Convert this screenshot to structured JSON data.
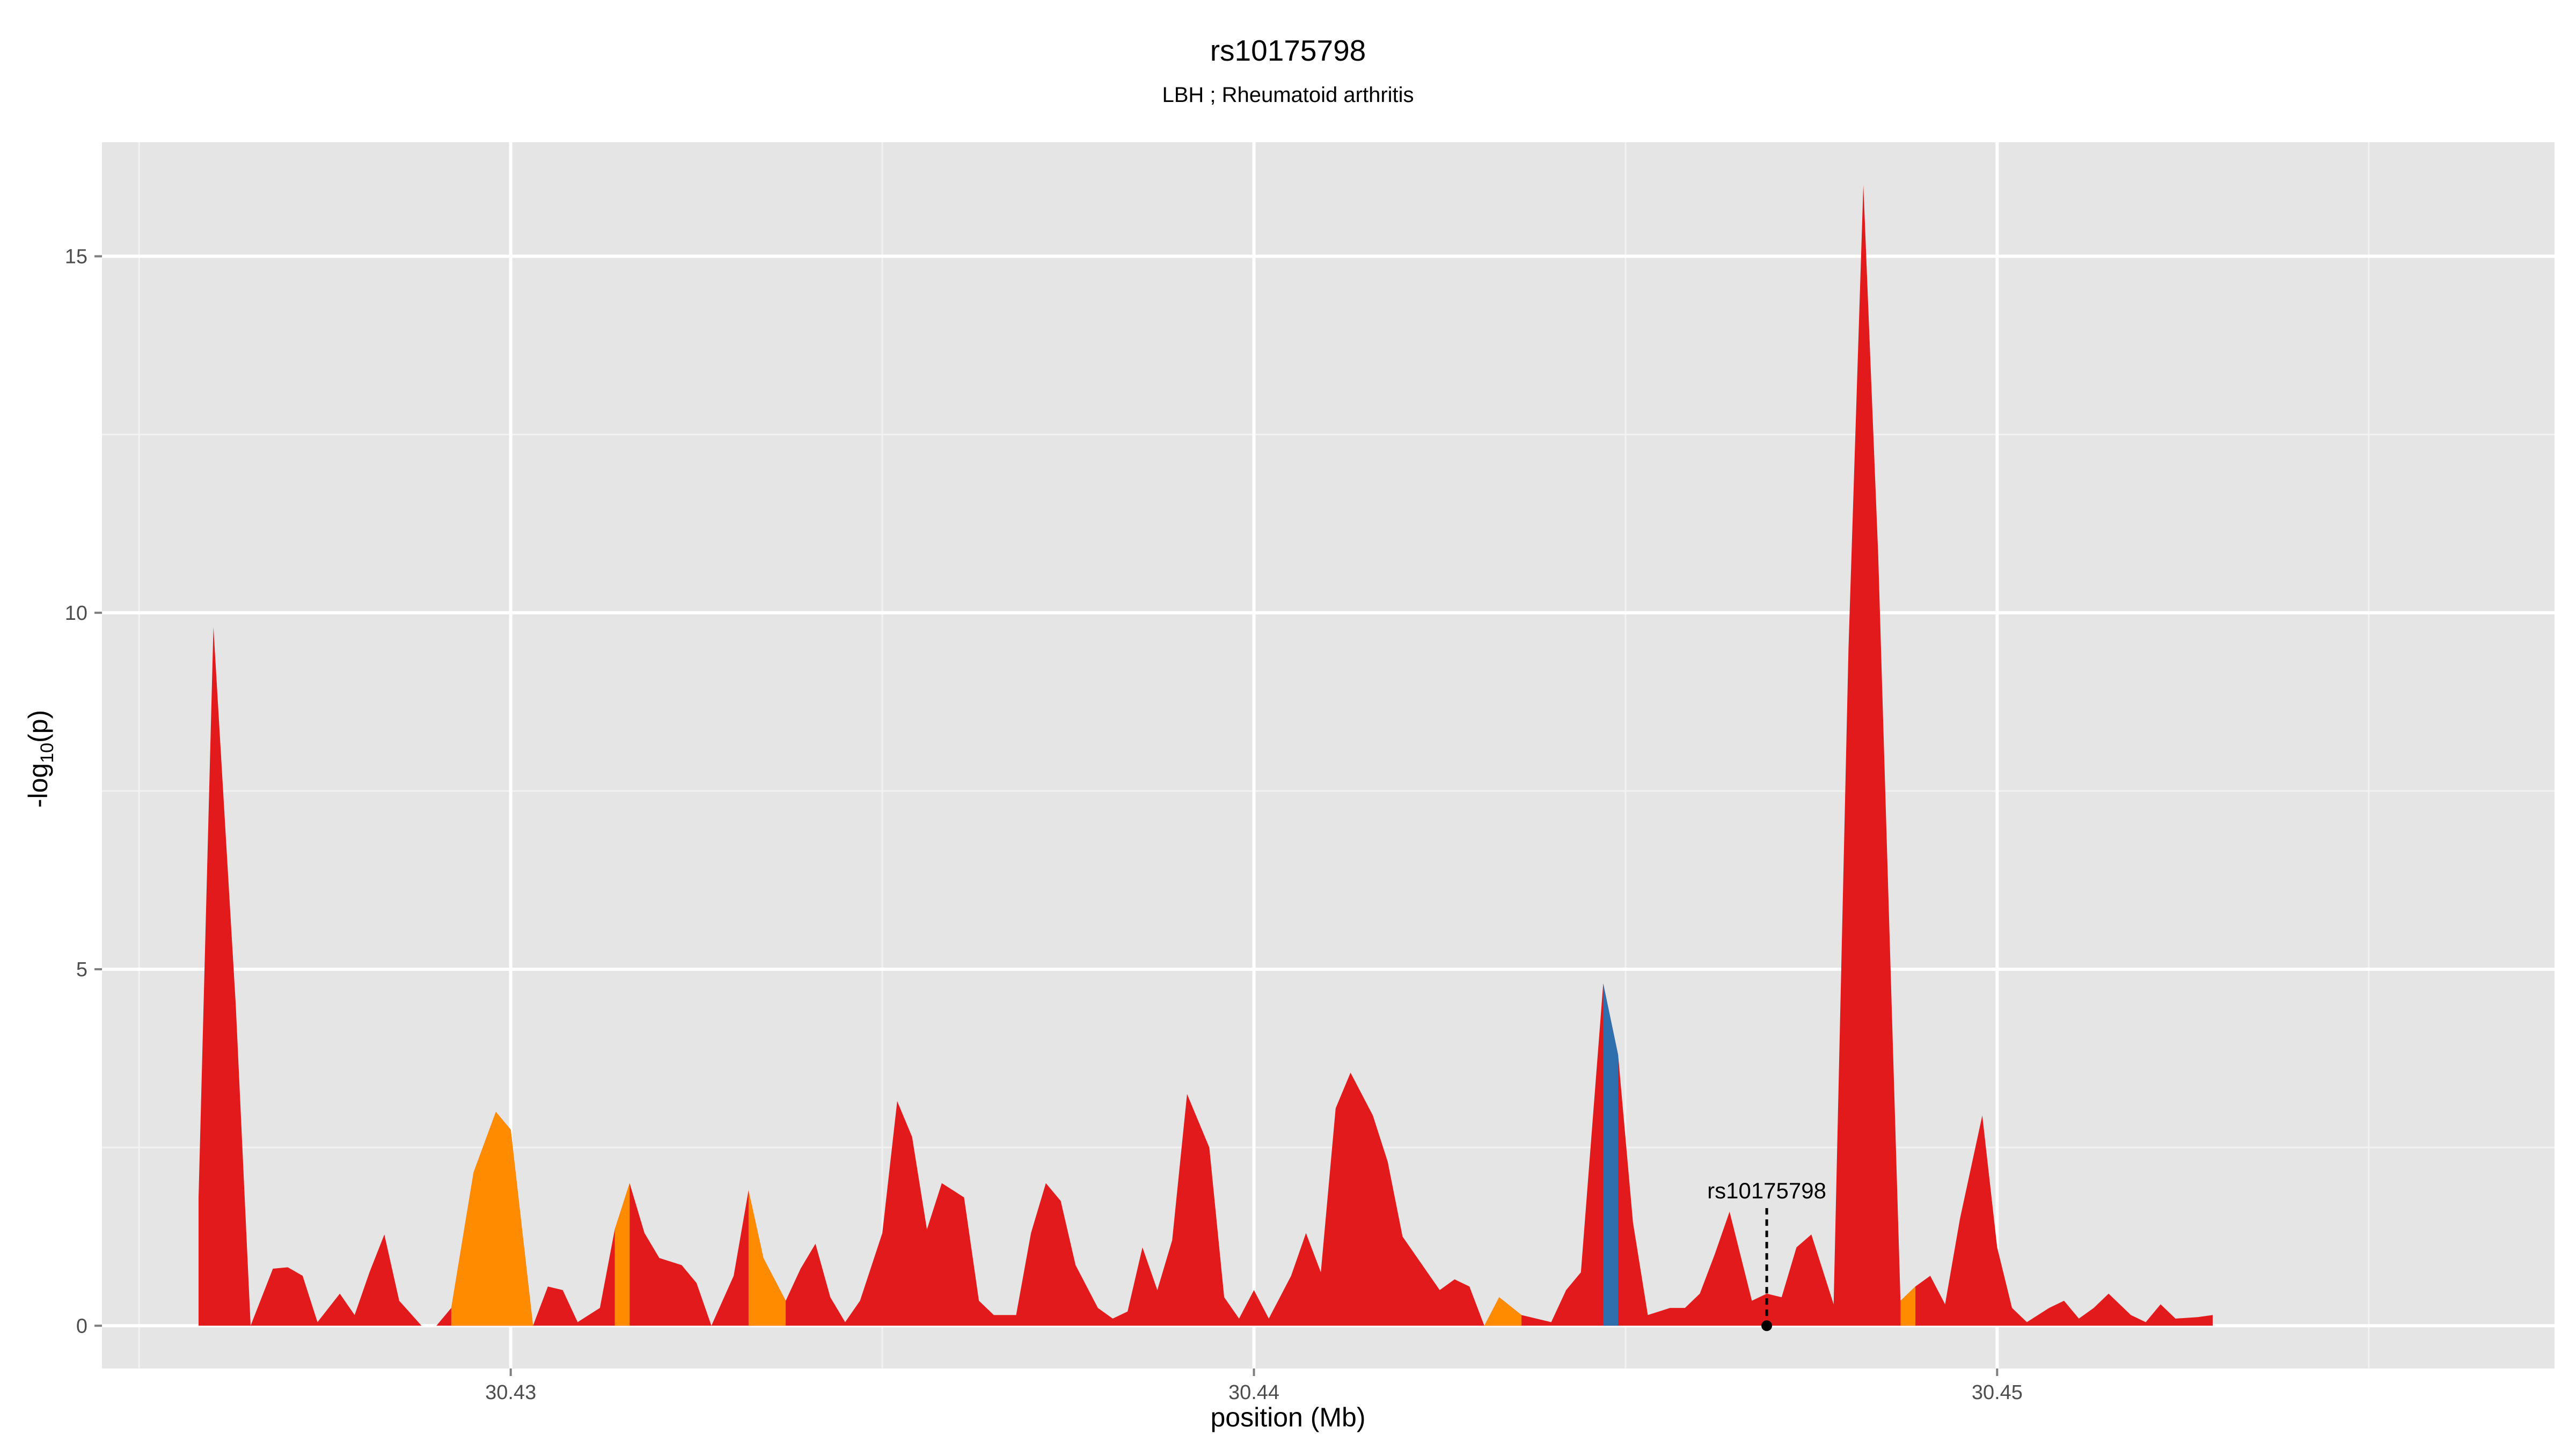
{
  "chart_data": {
    "type": "area",
    "title": "rs10175798",
    "subtitle": "LBH ; Rheumatoid arthritis",
    "xlabel": "position (Mb)",
    "ylabel_main": "-log",
    "ylabel_sub": "10",
    "ylabel_tail": "(p)",
    "xlim": [
      30.4245,
      30.4575
    ],
    "ylim": [
      -0.6,
      16.6
    ],
    "x_ticks": [
      {
        "value": 30.43,
        "label": "30.43"
      },
      {
        "value": 30.44,
        "label": "30.44"
      },
      {
        "value": 30.45,
        "label": "30.45"
      }
    ],
    "x_minor_ticks": [
      30.425,
      30.435,
      30.445,
      30.455
    ],
    "y_ticks": [
      {
        "value": 0,
        "label": "0"
      },
      {
        "value": 5,
        "label": "5"
      },
      {
        "value": 10,
        "label": "10"
      },
      {
        "value": 15,
        "label": "15"
      }
    ],
    "y_minor_ticks": [
      2.5,
      7.5,
      12.5
    ],
    "grid": true,
    "legend": "none",
    "colors": {
      "panel": "#e5e5e5",
      "grid_major": "#ffffff",
      "grid_minor": "#f2f2f2",
      "fill_default": "#e31a1c",
      "fill_orange": "#ff8c00",
      "fill_blue": "#2f6fae",
      "tick_text": "#4d4d4d"
    },
    "series": [
      {
        "points": [
          [
            30.4258,
            0
          ],
          [
            30.4258,
            1.8
          ],
          [
            30.426,
            9.8
          ],
          [
            30.4263,
            4.5
          ],
          [
            30.4265,
            0
          ],
          [
            30.4268,
            0.8
          ],
          [
            30.427,
            0.82
          ],
          [
            30.4272,
            0.7
          ],
          [
            30.4274,
            0.05
          ],
          [
            30.4277,
            0.45
          ],
          [
            30.4279,
            0.15
          ],
          [
            30.4281,
            0.75
          ],
          [
            30.4283,
            1.28
          ],
          [
            30.4285,
            0.35
          ],
          [
            30.4288,
            0
          ],
          [
            30.429,
            0
          ],
          [
            30.4292,
            0.25
          ],
          [
            30.4295,
            2.15
          ],
          [
            30.4298,
            3.0
          ],
          [
            30.43,
            2.75
          ],
          [
            30.4303,
            0
          ],
          [
            30.4305,
            0.55
          ],
          [
            30.4307,
            0.5
          ],
          [
            30.4309,
            0.05
          ],
          [
            30.4312,
            0.25
          ],
          [
            30.4314,
            1.35
          ],
          [
            30.4316,
            2.0
          ],
          [
            30.4318,
            1.3
          ],
          [
            30.432,
            0.95
          ],
          [
            30.4323,
            0.85
          ],
          [
            30.4325,
            0.6
          ],
          [
            30.4327,
            0
          ],
          [
            30.433,
            0.7
          ],
          [
            30.4332,
            1.9
          ],
          [
            30.4334,
            0.95
          ],
          [
            30.4337,
            0.35
          ],
          [
            30.4339,
            0.8
          ],
          [
            30.4341,
            1.15
          ],
          [
            30.4343,
            0.4
          ],
          [
            30.4345,
            0.05
          ],
          [
            30.4347,
            0.35
          ],
          [
            30.435,
            1.3
          ],
          [
            30.4352,
            3.15
          ],
          [
            30.4354,
            2.65
          ],
          [
            30.4356,
            1.35
          ],
          [
            30.4358,
            2.0
          ],
          [
            30.4361,
            1.8
          ],
          [
            30.4363,
            0.35
          ],
          [
            30.4365,
            0.15
          ],
          [
            30.4368,
            0.15
          ],
          [
            30.437,
            1.3
          ],
          [
            30.4372,
            2.0
          ],
          [
            30.4374,
            1.75
          ],
          [
            30.4376,
            0.85
          ],
          [
            30.4379,
            0.25
          ],
          [
            30.4381,
            0.1
          ],
          [
            30.4383,
            0.2
          ],
          [
            30.4385,
            1.1
          ],
          [
            30.4387,
            0.5
          ],
          [
            30.4389,
            1.2
          ],
          [
            30.4391,
            3.25
          ],
          [
            30.4394,
            2.5
          ],
          [
            30.4396,
            0.4
          ],
          [
            30.4398,
            0.1
          ],
          [
            30.44,
            0.5
          ],
          [
            30.4402,
            0.1
          ],
          [
            30.4405,
            0.7
          ],
          [
            30.4407,
            1.3
          ],
          [
            30.4409,
            0.75
          ],
          [
            30.4411,
            3.05
          ],
          [
            30.4413,
            3.55
          ],
          [
            30.4416,
            2.95
          ],
          [
            30.4418,
            2.3
          ],
          [
            30.442,
            1.25
          ],
          [
            30.4422,
            0.95
          ],
          [
            30.4425,
            0.5
          ],
          [
            30.4427,
            0.65
          ],
          [
            30.4429,
            0.55
          ],
          [
            30.4431,
            0
          ],
          [
            30.4433,
            0.4
          ],
          [
            30.4436,
            0.15
          ],
          [
            30.4438,
            0.1
          ],
          [
            30.444,
            0.05
          ],
          [
            30.4442,
            0.5
          ],
          [
            30.4444,
            0.75
          ],
          [
            30.4447,
            4.8
          ],
          [
            30.4449,
            3.8
          ],
          [
            30.4451,
            1.45
          ],
          [
            30.4453,
            0.15
          ],
          [
            30.4456,
            0.25
          ],
          [
            30.4458,
            0.25
          ],
          [
            30.446,
            0.45
          ],
          [
            30.4462,
            1.0
          ],
          [
            30.4464,
            1.6
          ],
          [
            30.4467,
            0.35
          ],
          [
            30.4469,
            0.45
          ],
          [
            30.4471,
            0.4
          ],
          [
            30.4473,
            1.1
          ],
          [
            30.4475,
            1.28
          ],
          [
            30.4478,
            0.3
          ],
          [
            30.448,
            9.5
          ],
          [
            30.4482,
            16.0
          ],
          [
            30.4484,
            10.8
          ],
          [
            30.4487,
            0.35
          ],
          [
            30.4489,
            0.55
          ],
          [
            30.4491,
            0.7
          ],
          [
            30.4493,
            0.3
          ],
          [
            30.4495,
            1.5
          ],
          [
            30.4498,
            2.95
          ],
          [
            30.45,
            1.1
          ],
          [
            30.4502,
            0.25
          ],
          [
            30.4504,
            0.05
          ],
          [
            30.4507,
            0.25
          ],
          [
            30.4509,
            0.35
          ],
          [
            30.4511,
            0.1
          ],
          [
            30.4513,
            0.25
          ],
          [
            30.4515,
            0.45
          ],
          [
            30.4518,
            0.15
          ],
          [
            30.452,
            0.05
          ],
          [
            30.4522,
            0.3
          ],
          [
            30.4524,
            0.1
          ],
          [
            30.4527,
            0.12
          ],
          [
            30.4529,
            0.15
          ],
          [
            30.4529,
            0
          ]
        ]
      }
    ],
    "highlight_bands": [
      {
        "x0": 30.4292,
        "x1": 30.4303,
        "color": "orange"
      },
      {
        "x0": 30.4314,
        "x1": 30.4316,
        "color": "orange"
      },
      {
        "x0": 30.4332,
        "x1": 30.4337,
        "color": "orange"
      },
      {
        "x0": 30.4431,
        "x1": 30.4436,
        "color": "orange"
      },
      {
        "x0": 30.4447,
        "x1": 30.4449,
        "color": "blue"
      },
      {
        "x0": 30.4487,
        "x1": 30.4489,
        "color": "orange"
      }
    ],
    "annotations": [
      {
        "label": "rs10175798",
        "x": 30.4469,
        "y": 0,
        "label_y": 1.9,
        "line_top_y": 1.65
      }
    ]
  }
}
